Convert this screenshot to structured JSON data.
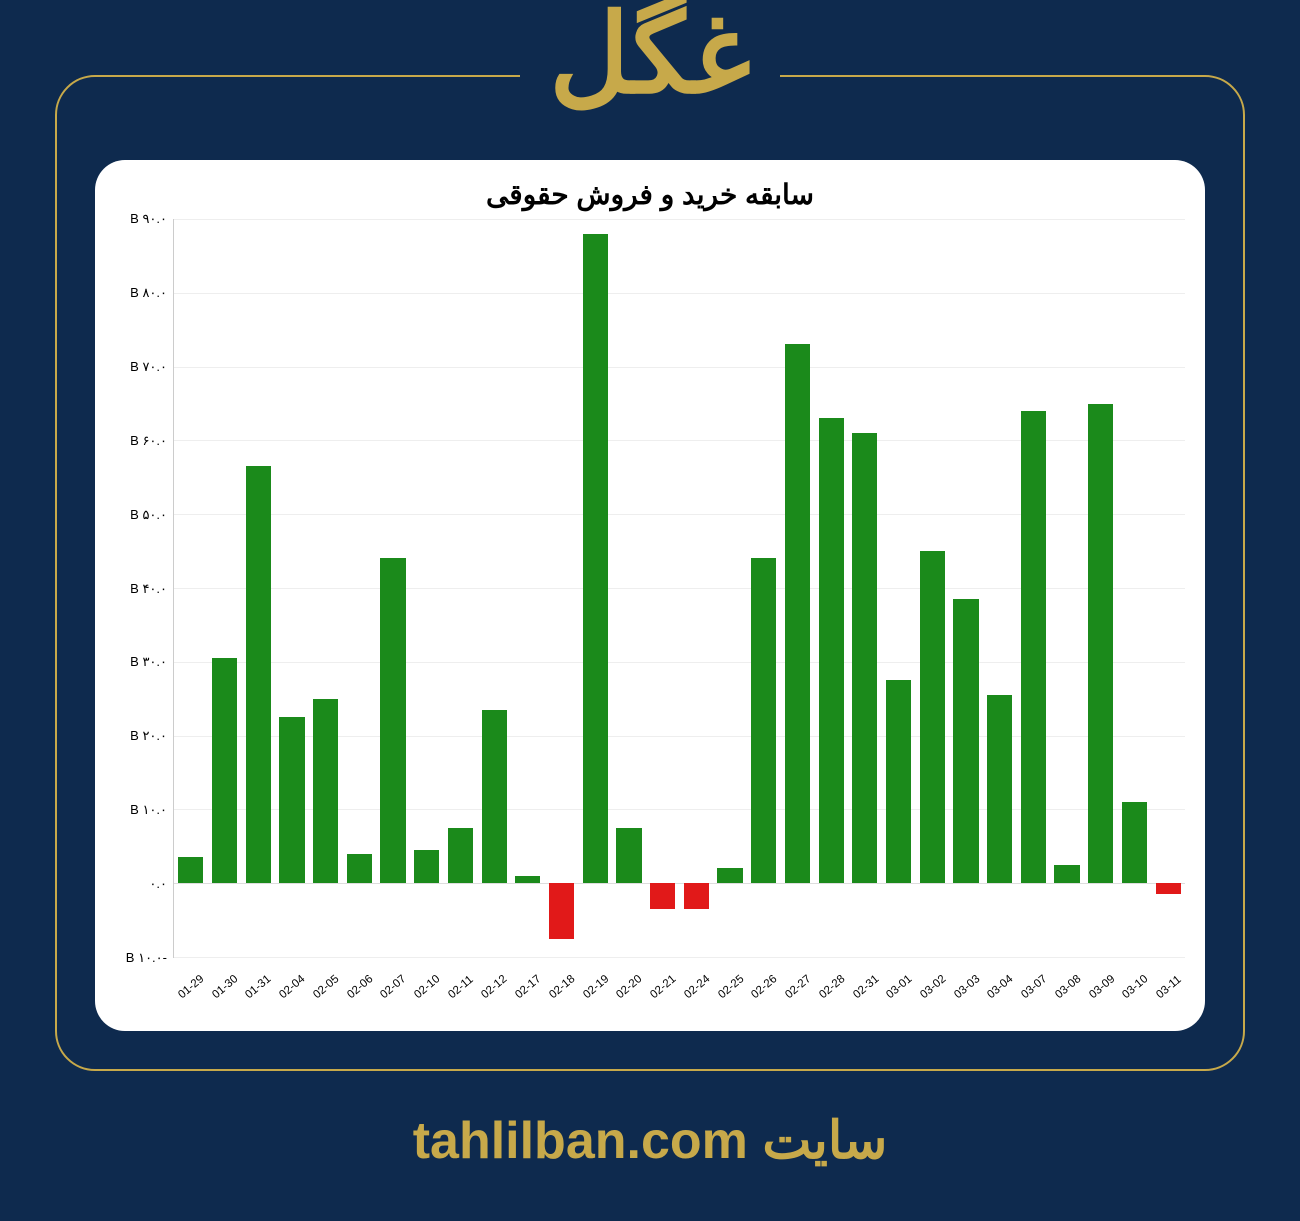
{
  "ticker": "غگل",
  "footer_prefix": "سایت",
  "footer_domain": "tahlilban.com",
  "chart": {
    "type": "bar",
    "title": "سابقه خرید و فروش حقوقی",
    "background_color": "#ffffff",
    "page_background": "#0e2a4e",
    "accent_color": "#c7a94a",
    "positive_color": "#1b8a1b",
    "negative_color": "#e11919",
    "grid_color": "#eeeeee",
    "title_fontsize": 28,
    "label_fontsize": 13,
    "xlabel_fontsize": 11.5,
    "bar_width": 0.75,
    "ylim": [
      -10,
      90
    ],
    "ytick_step": 10,
    "yticks": [
      {
        "v": -10,
        "label": "-۱۰.۰ B"
      },
      {
        "v": 0,
        "label": "۰.۰"
      },
      {
        "v": 10,
        "label": "۱۰.۰ B"
      },
      {
        "v": 20,
        "label": "۲۰.۰ B"
      },
      {
        "v": 30,
        "label": "۳۰.۰ B"
      },
      {
        "v": 40,
        "label": "۴۰.۰ B"
      },
      {
        "v": 50,
        "label": "۵۰.۰ B"
      },
      {
        "v": 60,
        "label": "۶۰.۰ B"
      },
      {
        "v": 70,
        "label": "۷۰.۰ B"
      },
      {
        "v": 80,
        "label": "۸۰.۰ B"
      },
      {
        "v": 90,
        "label": "۹۰.۰ B"
      }
    ],
    "categories": [
      "01-29",
      "01-30",
      "01-31",
      "02-04",
      "02-05",
      "02-06",
      "02-07",
      "02-10",
      "02-11",
      "02-12",
      "02-17",
      "02-18",
      "02-19",
      "02-20",
      "02-21",
      "02-24",
      "02-25",
      "02-26",
      "02-27",
      "02-28",
      "02-31",
      "03-01",
      "03-02",
      "03-03",
      "03-04",
      "03-07",
      "03-08",
      "03-09",
      "03-10",
      "03-11"
    ],
    "values": [
      3.5,
      30.5,
      56.5,
      22.5,
      25,
      4,
      44,
      4.5,
      7.5,
      23.5,
      1,
      -7.5,
      88,
      7.5,
      -3.5,
      -3.5,
      2,
      44,
      73,
      63,
      61,
      27.5,
      45,
      38.5,
      25.5,
      64,
      2.5,
      65,
      11,
      -1.5
    ]
  }
}
